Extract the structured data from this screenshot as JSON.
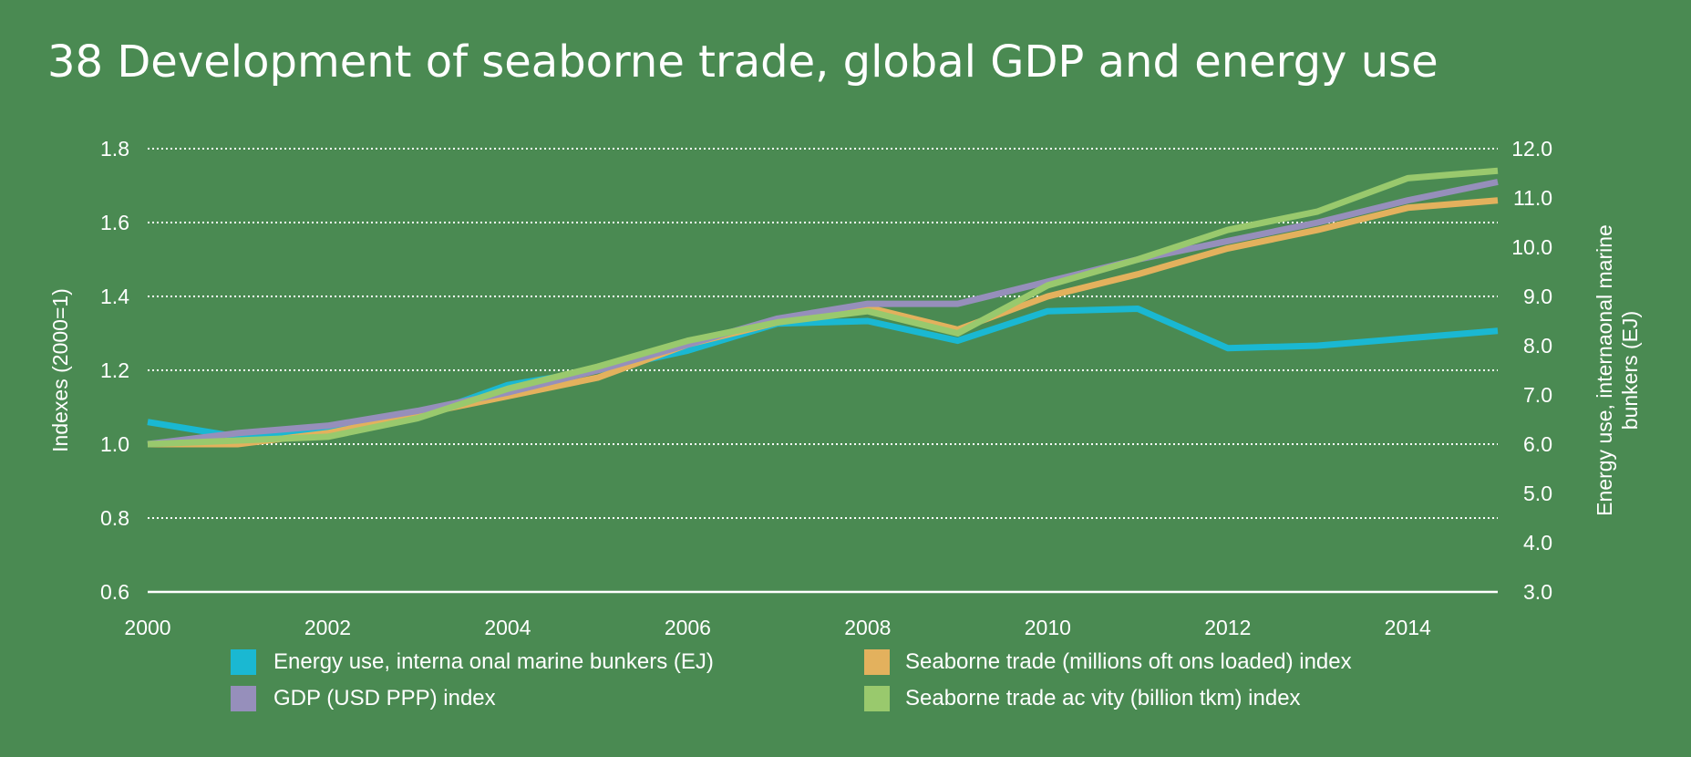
{
  "chart_data": {
    "type": "line",
    "title": "38 Development of seaborne trade, global GDP and energy use",
    "x": [
      2000,
      2001,
      2002,
      2003,
      2004,
      2005,
      2006,
      2007,
      2008,
      2009,
      2010,
      2011,
      2012,
      2013,
      2014,
      2015
    ],
    "x_ticks": [
      "2000",
      "2002",
      "2004",
      "2006",
      "2008",
      "2010",
      "2012",
      "2014"
    ],
    "x_tick_values": [
      2000,
      2002,
      2004,
      2006,
      2008,
      2010,
      2012,
      2014
    ],
    "xlim": [
      2000,
      2015
    ],
    "ylabel": "Indexes (2000=1)",
    "ylim": [
      0.6,
      1.8
    ],
    "y_ticks": [
      "0.6",
      "0.8",
      "1.0",
      "1.2",
      "1.4",
      "1.6",
      "1.8"
    ],
    "y_tick_values": [
      0.6,
      0.8,
      1.0,
      1.2,
      1.4,
      1.6,
      1.8
    ],
    "y2label_line1": "Energy use, internaonal marine",
    "y2label_line2": "bunkers (EJ)",
    "y2lim": [
      3.0,
      12.0
    ],
    "y2_ticks": [
      "3.0",
      "4.0",
      "5.0",
      "6.0",
      "7.0",
      "8.0",
      "9.0",
      "10.0",
      "11.0",
      "12.0"
    ],
    "y2_tick_values": [
      3,
      4,
      5,
      6,
      7,
      8,
      9,
      10,
      11,
      12
    ],
    "grid": true,
    "legend_position": "bottom",
    "series": [
      {
        "name": "Energy use, interna  onal marine bunkers (EJ)",
        "axis": "right",
        "color": "#1ab8d2",
        "values": [
          6.45,
          6.15,
          6.3,
          6.55,
          7.2,
          7.5,
          7.9,
          8.45,
          8.5,
          8.1,
          8.7,
          8.75,
          7.95,
          8.0,
          8.15,
          8.3
        ]
      },
      {
        "name": "Seaborne trade (millions oft ons loaded) index",
        "axis": "left",
        "color": "#e3b15d",
        "values": [
          1.0,
          1.0,
          1.03,
          1.08,
          1.13,
          1.18,
          1.27,
          1.33,
          1.37,
          1.31,
          1.4,
          1.46,
          1.53,
          1.58,
          1.64,
          1.66
        ]
      },
      {
        "name": "GDP (USD PPP) index",
        "axis": "left",
        "color": "#968fbb",
        "values": [
          1.0,
          1.03,
          1.05,
          1.09,
          1.14,
          1.2,
          1.27,
          1.34,
          1.38,
          1.38,
          1.44,
          1.5,
          1.55,
          1.6,
          1.66,
          1.71
        ]
      },
      {
        "name": "Seaborne trade ac  vity  (billion tkm) index",
        "axis": "left",
        "color": "#99c96d",
        "values": [
          1.0,
          1.01,
          1.02,
          1.07,
          1.15,
          1.21,
          1.28,
          1.33,
          1.36,
          1.3,
          1.43,
          1.5,
          1.58,
          1.63,
          1.72,
          1.74
        ]
      }
    ],
    "legend": [
      {
        "label": "Energy use, interna  onal marine bunkers (EJ)",
        "color": "#1ab8d2"
      },
      {
        "label": "Seaborne trade (millions oft ons loaded) index",
        "color": "#e3b15d"
      },
      {
        "label": "GDP (USD PPP) index",
        "color": "#968fbb"
      },
      {
        "label": "Seaborne trade ac  vity  (billion tkm) index",
        "color": "#99c96d"
      }
    ]
  },
  "colors": {
    "background": "#4a8a52",
    "text": "#ffffff",
    "grid": "#ffffff"
  }
}
